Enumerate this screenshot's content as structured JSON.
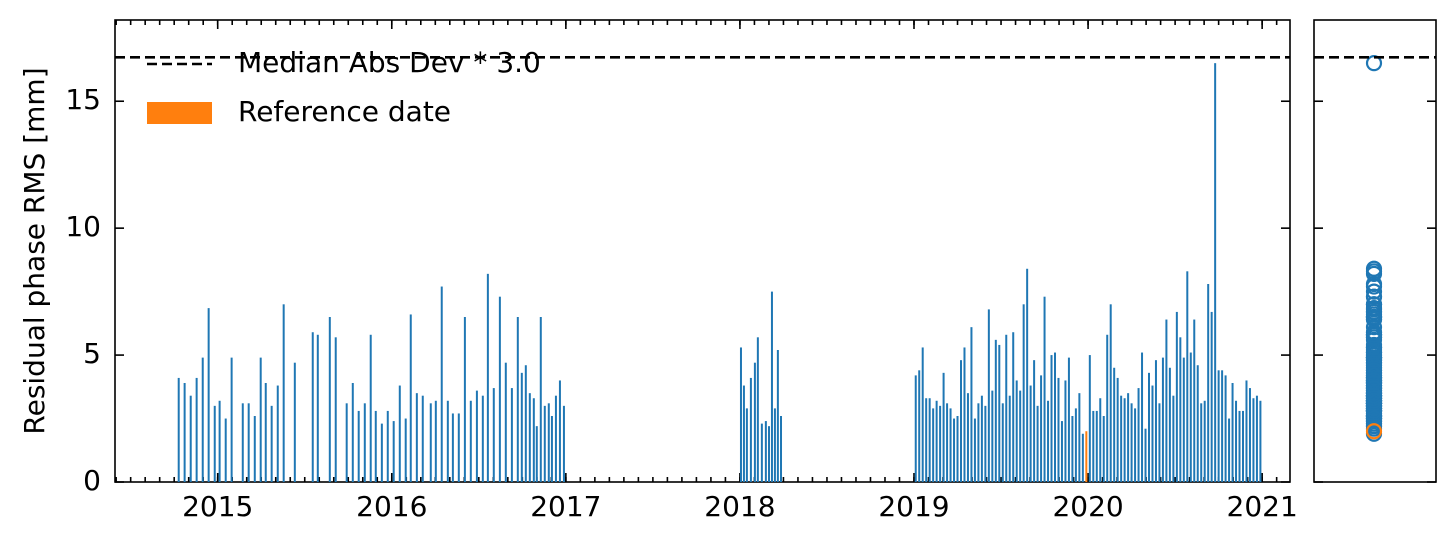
{
  "chart_data": {
    "type": "bar",
    "ylabel": "Residual phase RMS [mm]",
    "xlim": [
      2014.41,
      2021.16
    ],
    "xticks": [
      2015,
      2016,
      2017,
      2018,
      2019,
      2020,
      2021
    ],
    "ylim": [
      0,
      18.2
    ],
    "yticks": [
      0,
      5,
      10,
      15
    ],
    "threshold": {
      "value": 16.73,
      "label": "Median Abs Dev * 3.0"
    },
    "legend": "upper left",
    "series": [
      {
        "color": "#1f77b4",
        "x": [
          2014.776,
          2014.81,
          2014.845,
          2014.879,
          2014.914,
          2014.948,
          2014.983,
          2015.011,
          2015.046,
          2015.08,
          2015.144,
          2015.178,
          2015.213,
          2015.247,
          2015.276,
          2015.31,
          2015.345,
          2015.379,
          2015.443,
          2015.546,
          2015.575,
          2015.644,
          2015.678,
          2015.741,
          2015.776,
          2015.81,
          2015.845,
          2015.879,
          2015.908,
          2015.943,
          2015.977,
          2016.011,
          2016.046,
          2016.08,
          2016.109,
          2016.144,
          2016.178,
          2016.224,
          2016.253,
          2016.287,
          2016.322,
          2016.351,
          2016.385,
          2016.42,
          2016.454,
          2016.489,
          2016.523,
          2016.552,
          2016.586,
          2016.621,
          2016.655,
          2016.69,
          2016.724,
          2016.747,
          2016.77,
          2016.793,
          2016.816,
          2016.833,
          2016.856,
          2016.879,
          2016.902,
          2016.92,
          2016.943,
          2016.966,
          2016.989,
          2018.006,
          2018.023,
          2018.04,
          2018.063,
          2018.086,
          2018.103,
          2018.126,
          2018.149,
          2018.167,
          2018.184,
          2018.201,
          2018.218,
          2018.236,
          2019.01,
          2019.03,
          2019.05,
          2019.07,
          2019.09,
          2019.11,
          2019.13,
          2019.15,
          2019.17,
          2019.19,
          2019.21,
          2019.23,
          2019.25,
          2019.27,
          2019.29,
          2019.31,
          2019.33,
          2019.35,
          2019.37,
          2019.39,
          2019.41,
          2019.43,
          2019.45,
          2019.47,
          2019.49,
          2019.51,
          2019.53,
          2019.55,
          2019.57,
          2019.59,
          2019.61,
          2019.63,
          2019.65,
          2019.67,
          2019.69,
          2019.71,
          2019.73,
          2019.75,
          2019.77,
          2019.79,
          2019.81,
          2019.83,
          2019.85,
          2019.87,
          2019.89,
          2019.91,
          2019.93,
          2019.95,
          2019.97,
          2020.01,
          2020.03,
          2020.05,
          2020.07,
          2020.09,
          2020.11,
          2020.13,
          2020.15,
          2020.17,
          2020.19,
          2020.21,
          2020.23,
          2020.25,
          2020.27,
          2020.29,
          2020.31,
          2020.33,
          2020.35,
          2020.37,
          2020.39,
          2020.41,
          2020.43,
          2020.45,
          2020.47,
          2020.49,
          2020.51,
          2020.53,
          2020.55,
          2020.57,
          2020.59,
          2020.61,
          2020.63,
          2020.65,
          2020.67,
          2020.69,
          2020.71,
          2020.73,
          2020.75,
          2020.77,
          2020.79,
          2020.81,
          2020.83,
          2020.85,
          2020.87,
          2020.89,
          2020.91,
          2020.93,
          2020.95,
          2020.97,
          2020.99
        ],
        "values": [
          4.1,
          3.9,
          3.4,
          4.1,
          4.9,
          6.85,
          3.0,
          3.2,
          2.5,
          4.9,
          3.1,
          3.1,
          2.6,
          4.9,
          3.9,
          3.0,
          3.8,
          7.0,
          4.7,
          5.9,
          5.8,
          6.5,
          5.7,
          3.1,
          3.9,
          2.8,
          3.1,
          5.8,
          2.8,
          2.3,
          2.8,
          2.4,
          3.8,
          2.5,
          6.6,
          3.5,
          3.4,
          3.1,
          3.2,
          7.7,
          3.2,
          2.7,
          2.7,
          6.5,
          3.2,
          3.6,
          3.4,
          8.2,
          3.7,
          7.3,
          4.7,
          3.7,
          6.5,
          4.3,
          4.6,
          3.5,
          3.3,
          2.2,
          6.5,
          3.0,
          3.1,
          2.6,
          3.4,
          4.0,
          3.0,
          5.3,
          3.8,
          2.9,
          4.1,
          4.7,
          5.7,
          2.3,
          2.4,
          2.2,
          7.5,
          2.9,
          5.2,
          2.6,
          4.2,
          4.4,
          5.3,
          3.3,
          3.3,
          2.9,
          3.2,
          3.0,
          4.3,
          3.1,
          2.9,
          2.5,
          2.6,
          4.8,
          5.3,
          3.5,
          6.1,
          2.5,
          3.1,
          3.4,
          3.0,
          6.8,
          3.6,
          5.6,
          5.4,
          3.1,
          5.8,
          3.4,
          5.9,
          4.0,
          3.6,
          7.0,
          8.4,
          3.8,
          4.8,
          3.0,
          4.2,
          7.3,
          3.2,
          5.0,
          5.1,
          4.1,
          2.4,
          4.0,
          4.9,
          2.6,
          2.9,
          3.5,
          1.9,
          5.0,
          2.8,
          2.8,
          3.3,
          2.6,
          5.8,
          7.0,
          4.5,
          4.1,
          3.4,
          3.3,
          3.5,
          3.1,
          2.9,
          3.7,
          5.1,
          2.1,
          4.3,
          3.8,
          4.8,
          3.1,
          4.9,
          6.4,
          4.5,
          3.4,
          6.7,
          5.7,
          4.9,
          8.3,
          5.1,
          6.4,
          4.6,
          3.1,
          3.2,
          7.8,
          6.7,
          16.5,
          4.4,
          4.4,
          4.2,
          2.5,
          3.9,
          3.2,
          2.8,
          2.8,
          4.0,
          3.7,
          3.3,
          3.4,
          3.2
        ]
      },
      {
        "name": "Reference date",
        "color": "#ff7f0e",
        "x": [
          2019.99
        ],
        "values": [
          2.0
        ]
      }
    ]
  }
}
